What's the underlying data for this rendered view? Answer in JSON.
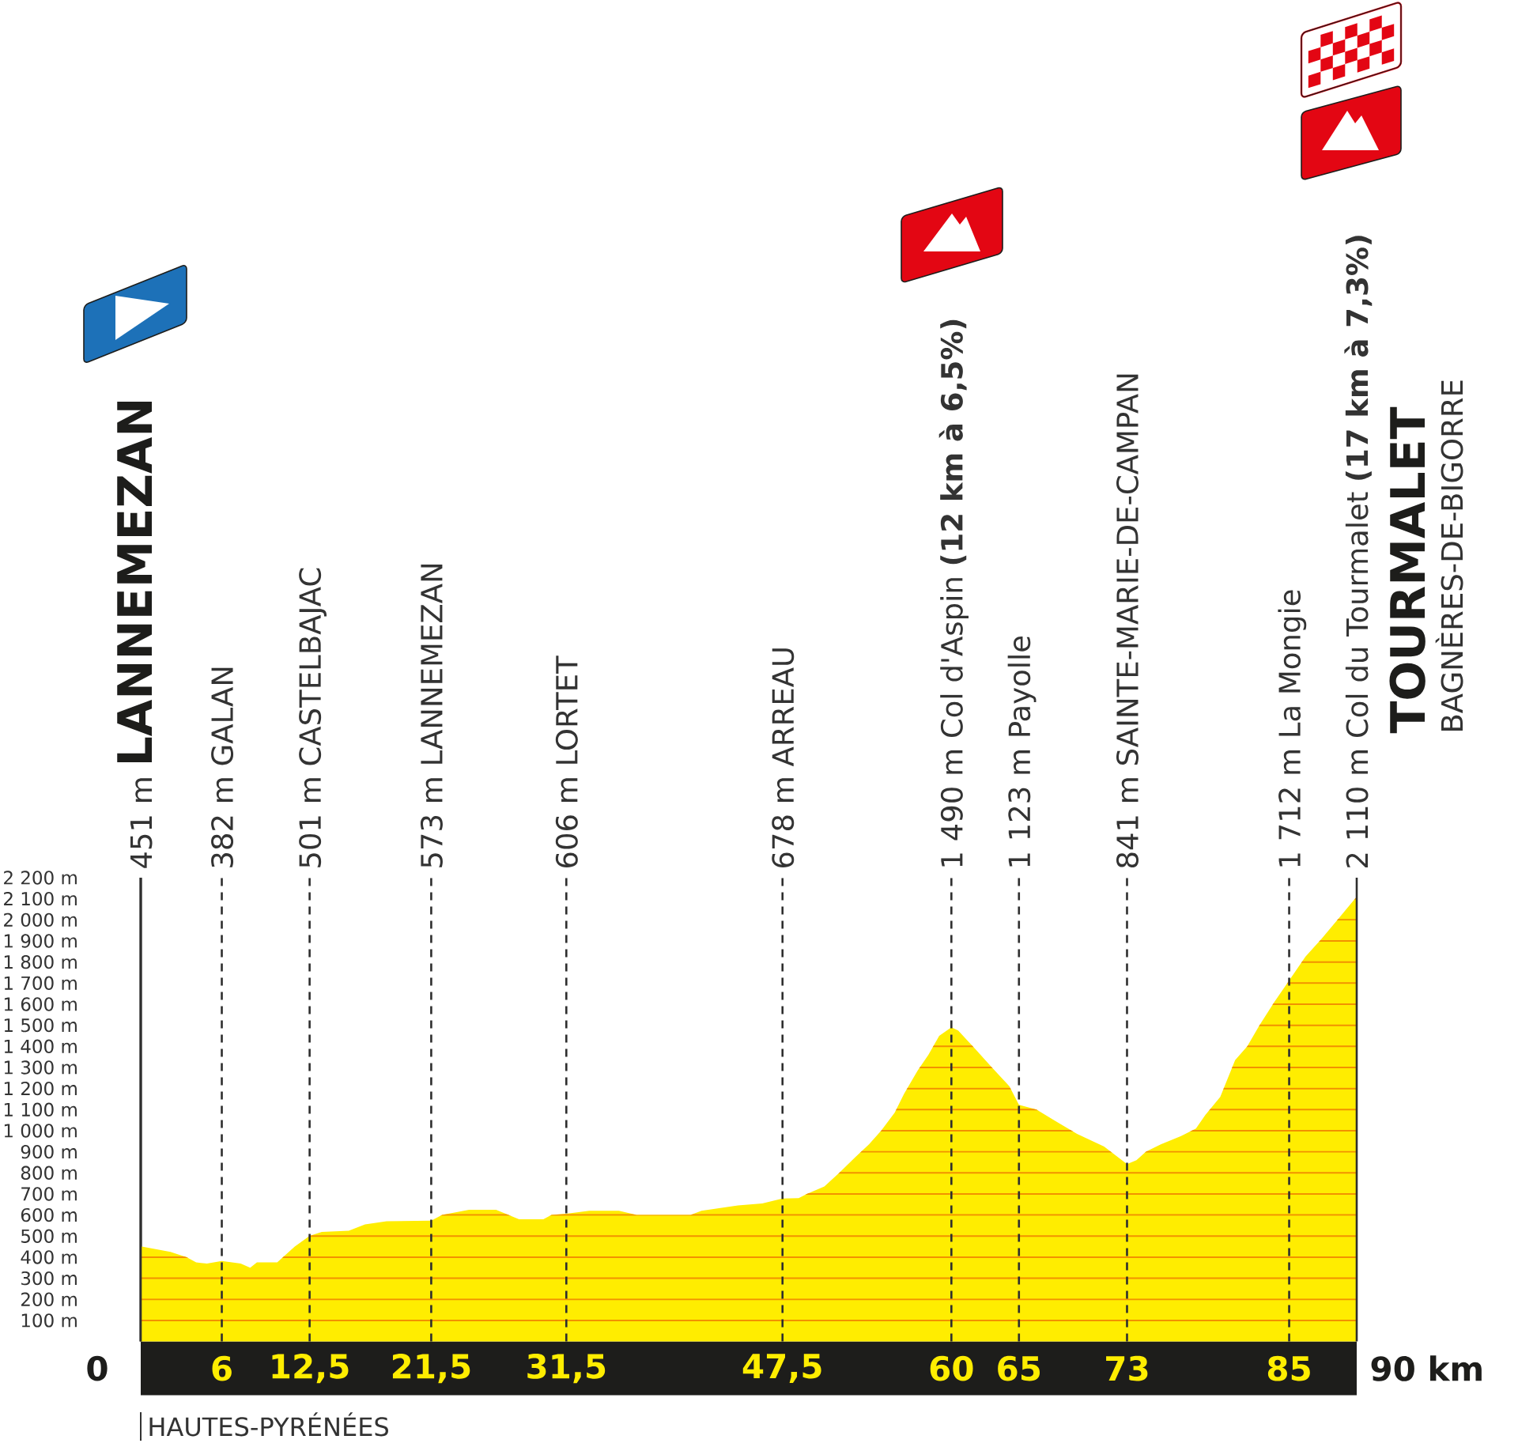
{
  "chart_data": {
    "type": "area",
    "color": "#ffed00",
    "x": [
      0,
      2.2,
      3.4,
      4.1,
      4.9,
      6,
      7.4,
      8.1,
      8.6,
      10.1,
      11.4,
      12.5,
      13.4,
      15.4,
      16.6,
      18.2,
      21.5,
      22.3,
      24.3,
      26.3,
      28,
      29.8,
      30.4,
      31.5,
      33.2,
      35.4,
      36.7,
      40.7,
      41.5,
      44.2,
      46,
      47.5,
      48.7,
      49.3,
      50.6,
      51.7,
      52.9,
      53.9,
      54.8,
      55.8,
      56.5,
      57.5,
      58.3,
      59.1,
      60,
      60.5,
      61.8,
      63,
      64.3,
      65,
      66.3,
      67.6,
      69.3,
      71.3,
      73,
      73.7,
      74.4,
      75.5,
      77,
      78.1,
      78.8,
      79.9,
      81,
      81.9,
      82.8,
      83.9,
      85,
      86.2,
      87.4,
      88.7,
      90
    ],
    "values": [
      451,
      425,
      400,
      375,
      370,
      382,
      370,
      350,
      375,
      375,
      450,
      501,
      520,
      525,
      555,
      570,
      573,
      600,
      625,
      625,
      580,
      580,
      600,
      606,
      620,
      620,
      600,
      600,
      620,
      645,
      655,
      678,
      680,
      700,
      735,
      800,
      875,
      935,
      1000,
      1085,
      1175,
      1285,
      1360,
      1450,
      1490,
      1475,
      1385,
      1300,
      1210,
      1123,
      1100,
      1050,
      985,
      925,
      841,
      860,
      900,
      935,
      975,
      1010,
      1075,
      1160,
      1335,
      1400,
      1500,
      1610,
      1712,
      1825,
      1910,
      2010,
      2110
    ],
    "xlim": [
      0,
      90
    ],
    "ylim": [
      0,
      2200
    ],
    "xticks": [
      6,
      {
        "value": 12.5,
        "label": "12,5"
      },
      {
        "value": 21.5,
        "label": "21,5"
      },
      {
        "value": 31.5,
        "label": "31,5"
      },
      {
        "value": 47.5,
        "label": "47,5"
      },
      60,
      65,
      73,
      85
    ],
    "yticks": [
      {
        "value": 100,
        "label": "100 m"
      },
      {
        "value": 200,
        "label": "200 m"
      },
      {
        "value": 300,
        "label": "300 m"
      },
      {
        "value": 400,
        "label": "400 m"
      },
      {
        "value": 500,
        "label": "500 m"
      },
      {
        "value": 600,
        "label": "600 m"
      },
      {
        "value": 700,
        "label": "700 m"
      },
      {
        "value": 800,
        "label": "800 m"
      },
      {
        "value": 900,
        "label": "900 m"
      },
      {
        "value": 1000,
        "label": "1 000 m"
      },
      {
        "value": 1100,
        "label": "1 100 m"
      },
      {
        "value": 1200,
        "label": "1 200 m"
      },
      {
        "value": 1300,
        "label": "1 300 m"
      },
      {
        "value": 1400,
        "label": "1 400 m"
      },
      {
        "value": 1500,
        "label": "1 500 m"
      },
      {
        "value": 1600,
        "label": "1 600 m"
      },
      {
        "value": 1700,
        "label": "1 700 m"
      },
      {
        "value": 1800,
        "label": "1 800 m"
      },
      {
        "value": 1900,
        "label": "1 900 m"
      },
      {
        "value": 2000,
        "label": "2 000 m"
      },
      {
        "value": 2100,
        "label": "2 100 m"
      },
      {
        "value": 2200,
        "label": "2 200 m"
      }
    ],
    "grid": "y",
    "ref_lines": [
      {
        "axis": "x",
        "value": 0,
        "label": "451 m",
        "line_style": "solid"
      },
      {
        "axis": "x",
        "value": 6,
        "label": "382 m GALAN",
        "line_style": "dashed"
      },
      {
        "axis": "x",
        "value": 12.5,
        "label": "501 m CASTELBAJAC",
        "line_style": "dashed"
      },
      {
        "axis": "x",
        "value": 21.5,
        "label": "573 m LANNEMEZAN",
        "line_style": "dashed"
      },
      {
        "axis": "x",
        "value": 31.5,
        "label": "606 m LORTET",
        "line_style": "dashed"
      },
      {
        "axis": "x",
        "value": 47.5,
        "label": "678 m ARREAU",
        "line_style": "dashed"
      },
      {
        "axis": "x",
        "value": 60,
        "label": "1 490 m Col d'Aspin **(12 km à 6,5%)**",
        "line_style": "dashed"
      },
      {
        "axis": "x",
        "value": 65,
        "label": "1 123 m Payolle",
        "line_style": "dashed"
      },
      {
        "axis": "x",
        "value": 73,
        "label": "841 m SAINTE-MARIE-DE-CAMPAN",
        "line_style": "dashed"
      },
      {
        "axis": "x",
        "value": 85,
        "label": "1 712 m La Mongie",
        "line_style": "dashed"
      },
      {
        "axis": "x",
        "value": 90,
        "label": "2 110 m Col du Tourmalet **(17 km à 7,3%)**",
        "line_style": "solid"
      }
    ],
    "annotations": [
      "LANNEMEZAN",
      "TOURMALET",
      "BAGNÈRES-DE-BIGORRE",
      "0",
      "90 km",
      "HAUTES-PYRÉNÉES"
    ]
  }
}
